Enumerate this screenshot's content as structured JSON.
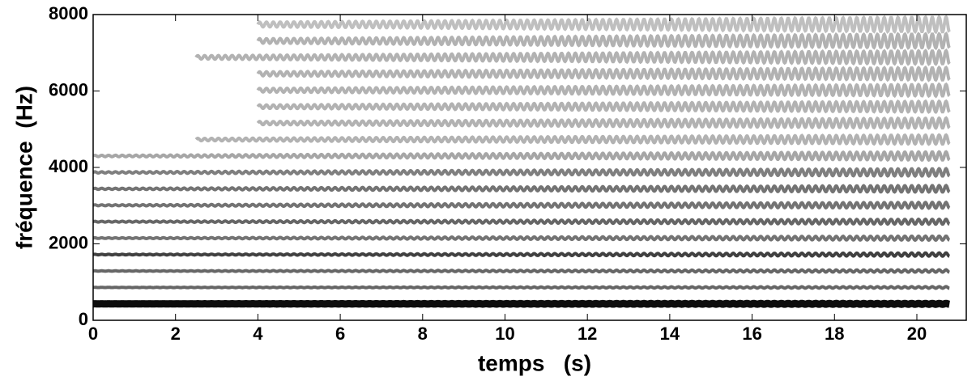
{
  "chart_data": {
    "type": "spectrogram",
    "xlabel": "temps   (s)",
    "ylabel": "fréquence  (Hz)",
    "xlim": [
      0,
      21.2
    ],
    "xticks": [
      0,
      2,
      4,
      6,
      8,
      10,
      12,
      14,
      16,
      18,
      20
    ],
    "ylim": [
      0,
      8000
    ],
    "yticks": [
      0,
      2000,
      4000,
      6000,
      8000
    ],
    "color": "#000000",
    "end": 20.8,
    "vibrato": {
      "rate": 6,
      "depth": [
        0.004,
        0.025
      ]
    },
    "harmonics": [
      {
        "f": 430,
        "start": 0,
        "strength": 0.95
      },
      {
        "f": 860,
        "start": 0,
        "strength": 0.6
      },
      {
        "f": 1290,
        "start": 0,
        "strength": 0.6
      },
      {
        "f": 1720,
        "start": 0,
        "strength": 0.75
      },
      {
        "f": 2150,
        "start": 0,
        "strength": 0.55
      },
      {
        "f": 2580,
        "start": 0,
        "strength": 0.6
      },
      {
        "f": 3010,
        "start": 0,
        "strength": 0.55
      },
      {
        "f": 3440,
        "start": 0,
        "strength": 0.55
      },
      {
        "f": 3870,
        "start": 0,
        "strength": 0.5
      },
      {
        "f": 4300,
        "start": 0,
        "strength": 0.35
      },
      {
        "f": 4730,
        "start": 2.5,
        "strength": 0.3
      },
      {
        "f": 5160,
        "start": 4,
        "strength": 0.3
      },
      {
        "f": 5590,
        "start": 4,
        "strength": 0.3
      },
      {
        "f": 6020,
        "start": 4,
        "strength": 0.3
      },
      {
        "f": 6450,
        "start": 4,
        "strength": 0.3
      },
      {
        "f": 6880,
        "start": 2.5,
        "strength": 0.3
      },
      {
        "f": 7310,
        "start": 4,
        "strength": 0.3
      },
      {
        "f": 7740,
        "start": 4,
        "strength": 0.25
      }
    ]
  }
}
